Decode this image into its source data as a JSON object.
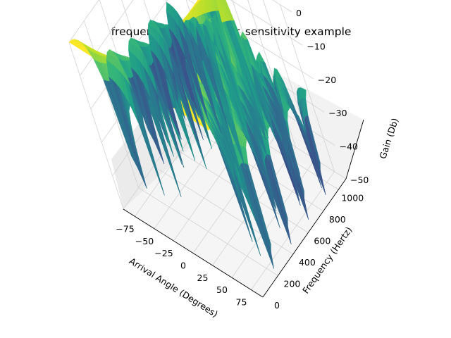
{
  "chart_data": {
    "type": "surface",
    "title": "frequence_range_linear_sensitivity example",
    "xlabel": "Arrival Angle (Degrees)",
    "ylabel": "Frequency (Hertz)",
    "zlabel": "Gain (Db)",
    "x_ticks": [
      "−75",
      "−50",
      "−25",
      "0",
      "25",
      "50",
      "75"
    ],
    "y_ticks": [
      "0",
      "200",
      "400",
      "600",
      "800",
      "1000"
    ],
    "z_ticks": [
      "0",
      "−10",
      "−20",
      "−30",
      "−40",
      "−50"
    ],
    "xlim": [
      -90,
      90
    ],
    "ylim": [
      0,
      1100
    ],
    "zlim": [
      -50,
      0
    ],
    "colormap": "viridis",
    "grid": true
  }
}
